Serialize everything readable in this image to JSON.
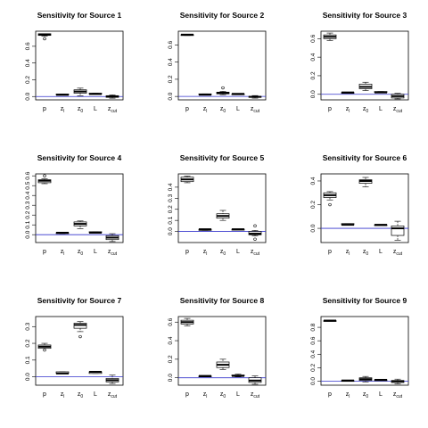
{
  "chart_data": [
    {
      "type": "boxplot",
      "title": "Sensitivity for Source 1",
      "categories": [
        "p",
        "z_l",
        "z_0",
        "L",
        "z_cut"
      ],
      "yticks": [
        0.0,
        0.2,
        0.4,
        0.6
      ],
      "ylim": [
        -0.04,
        0.78
      ],
      "reference_line": 0,
      "boxes": [
        {
          "whisker_low": 0.72,
          "q1": 0.73,
          "median": 0.74,
          "q3": 0.75,
          "whisker_high": 0.75,
          "outliers": [
            0.69
          ]
        },
        {
          "whisker_low": 0.02,
          "q1": 0.02,
          "median": 0.02,
          "q3": 0.03,
          "whisker_high": 0.03,
          "outliers": []
        },
        {
          "whisker_low": 0.01,
          "q1": 0.04,
          "median": 0.06,
          "q3": 0.08,
          "whisker_high": 0.1,
          "outliers": []
        },
        {
          "whisker_low": 0.03,
          "q1": 0.03,
          "median": 0.03,
          "q3": 0.04,
          "whisker_high": 0.04,
          "outliers": []
        },
        {
          "whisker_low": -0.02,
          "q1": -0.01,
          "median": 0.0,
          "q3": 0.01,
          "whisker_high": 0.02,
          "outliers": []
        }
      ]
    },
    {
      "type": "boxplot",
      "title": "Sensitivity for Source 2",
      "categories": [
        "p",
        "z_l",
        "z_0",
        "L",
        "z_cut"
      ],
      "yticks": [
        0.0,
        0.2,
        0.4,
        0.6
      ],
      "ylim": [
        -0.04,
        0.76
      ],
      "reference_line": 0,
      "boxes": [
        {
          "whisker_low": 0.71,
          "q1": 0.71,
          "median": 0.72,
          "q3": 0.72,
          "whisker_high": 0.72,
          "outliers": []
        },
        {
          "whisker_low": 0.02,
          "q1": 0.02,
          "median": 0.02,
          "q3": 0.03,
          "whisker_high": 0.03,
          "outliers": []
        },
        {
          "whisker_low": 0.02,
          "q1": 0.03,
          "median": 0.04,
          "q3": 0.05,
          "whisker_high": 0.06,
          "outliers": [
            0.1
          ]
        },
        {
          "whisker_low": 0.02,
          "q1": 0.02,
          "median": 0.03,
          "q3": 0.03,
          "whisker_high": 0.03,
          "outliers": []
        },
        {
          "whisker_low": -0.02,
          "q1": -0.01,
          "median": -0.005,
          "q3": 0.0,
          "whisker_high": 0.01,
          "outliers": []
        }
      ]
    },
    {
      "type": "boxplot",
      "title": "Sensitivity for Source 3",
      "categories": [
        "p",
        "z_l",
        "z_0",
        "L",
        "z_cut"
      ],
      "yticks": [
        0.0,
        0.2,
        0.4,
        0.6
      ],
      "ylim": [
        -0.06,
        0.68
      ],
      "reference_line": 0,
      "boxes": [
        {
          "whisker_low": 0.58,
          "q1": 0.6,
          "median": 0.62,
          "q3": 0.64,
          "whisker_high": 0.66,
          "outliers": []
        },
        {
          "whisker_low": 0.01,
          "q1": 0.01,
          "median": 0.02,
          "q3": 0.02,
          "whisker_high": 0.02,
          "outliers": []
        },
        {
          "whisker_low": 0.04,
          "q1": 0.06,
          "median": 0.08,
          "q3": 0.11,
          "whisker_high": 0.13,
          "outliers": []
        },
        {
          "whisker_low": 0.02,
          "q1": 0.02,
          "median": 0.02,
          "q3": 0.03,
          "whisker_high": 0.03,
          "outliers": []
        },
        {
          "whisker_low": -0.05,
          "q1": -0.04,
          "median": -0.02,
          "q3": 0.0,
          "whisker_high": 0.01,
          "outliers": []
        }
      ]
    },
    {
      "type": "boxplot",
      "title": "Sensitivity for Source 4",
      "categories": [
        "p",
        "z_l",
        "z_0",
        "L",
        "z_cut"
      ],
      "yticks": [
        0.0,
        0.1,
        0.2,
        0.3,
        0.4,
        0.5,
        0.6
      ],
      "ylim": [
        -0.08,
        0.62
      ],
      "reference_line": 0,
      "boxes": [
        {
          "whisker_low": 0.52,
          "q1": 0.53,
          "median": 0.55,
          "q3": 0.56,
          "whisker_high": 0.57,
          "outliers": [
            0.6
          ]
        },
        {
          "whisker_low": 0.01,
          "q1": 0.02,
          "median": 0.02,
          "q3": 0.02,
          "whisker_high": 0.02,
          "outliers": []
        },
        {
          "whisker_low": 0.06,
          "q1": 0.09,
          "median": 0.11,
          "q3": 0.13,
          "whisker_high": 0.14,
          "outliers": []
        },
        {
          "whisker_low": 0.02,
          "q1": 0.02,
          "median": 0.02,
          "q3": 0.03,
          "whisker_high": 0.03,
          "outliers": []
        },
        {
          "whisker_low": -0.07,
          "q1": -0.05,
          "median": -0.03,
          "q3": -0.01,
          "whisker_high": 0.01,
          "outliers": []
        }
      ]
    },
    {
      "type": "boxplot",
      "title": "Sensitivity for Source 5",
      "categories": [
        "p",
        "z_l",
        "z_0",
        "L",
        "z_cut"
      ],
      "yticks": [
        0.0,
        0.1,
        0.2,
        0.3,
        0.4
      ],
      "ylim": [
        -0.1,
        0.52
      ],
      "reference_line": 0,
      "boxes": [
        {
          "whisker_low": 0.44,
          "q1": 0.45,
          "median": 0.47,
          "q3": 0.49,
          "whisker_high": 0.5,
          "outliers": []
        },
        {
          "whisker_low": 0.01,
          "q1": 0.01,
          "median": 0.02,
          "q3": 0.02,
          "whisker_high": 0.02,
          "outliers": []
        },
        {
          "whisker_low": 0.1,
          "q1": 0.12,
          "median": 0.14,
          "q3": 0.16,
          "whisker_high": 0.19,
          "outliers": []
        },
        {
          "whisker_low": 0.02,
          "q1": 0.02,
          "median": 0.02,
          "q3": 0.02,
          "whisker_high": 0.02,
          "outliers": []
        },
        {
          "whisker_low": -0.04,
          "q1": -0.03,
          "median": -0.02,
          "q3": 0.0,
          "whisker_high": 0.01,
          "outliers": [
            0.05,
            -0.07
          ]
        }
      ]
    },
    {
      "type": "boxplot",
      "title": "Sensitivity for Source 6",
      "categories": [
        "p",
        "z_l",
        "z_0",
        "L",
        "z_cut"
      ],
      "yticks": [
        0.0,
        0.2,
        0.4
      ],
      "ylim": [
        -0.12,
        0.46
      ],
      "reference_line": 0,
      "boxes": [
        {
          "whisker_low": 0.24,
          "q1": 0.26,
          "median": 0.28,
          "q3": 0.3,
          "whisker_high": 0.31,
          "outliers": [
            0.2
          ]
        },
        {
          "whisker_low": 0.03,
          "q1": 0.03,
          "median": 0.03,
          "q3": 0.04,
          "whisker_high": 0.04,
          "outliers": []
        },
        {
          "whisker_low": 0.35,
          "q1": 0.38,
          "median": 0.4,
          "q3": 0.41,
          "whisker_high": 0.43,
          "outliers": []
        },
        {
          "whisker_low": 0.03,
          "q1": 0.03,
          "median": 0.03,
          "q3": 0.03,
          "whisker_high": 0.03,
          "outliers": []
        },
        {
          "whisker_low": -0.1,
          "q1": -0.06,
          "median": 0.0,
          "q3": 0.02,
          "whisker_high": 0.06,
          "outliers": []
        }
      ]
    },
    {
      "type": "boxplot",
      "title": "Sensitivity for Source 7",
      "categories": [
        "p",
        "z_l",
        "z_0",
        "L",
        "z_cut"
      ],
      "yticks": [
        0.0,
        0.1,
        0.2,
        0.3
      ],
      "ylim": [
        -0.05,
        0.36
      ],
      "reference_line": 0,
      "boxes": [
        {
          "whisker_low": 0.17,
          "q1": 0.17,
          "median": 0.18,
          "q3": 0.19,
          "whisker_high": 0.2,
          "outliers": [
            0.16
          ]
        },
        {
          "whisker_low": 0.02,
          "q1": 0.02,
          "median": 0.02,
          "q3": 0.03,
          "whisker_high": 0.03,
          "outliers": []
        },
        {
          "whisker_low": 0.27,
          "q1": 0.29,
          "median": 0.31,
          "q3": 0.32,
          "whisker_high": 0.33,
          "outliers": [
            0.24
          ]
        },
        {
          "whisker_low": 0.02,
          "q1": 0.02,
          "median": 0.03,
          "q3": 0.03,
          "whisker_high": 0.03,
          "outliers": []
        },
        {
          "whisker_low": -0.04,
          "q1": -0.03,
          "median": -0.02,
          "q3": -0.01,
          "whisker_high": 0.01,
          "outliers": []
        }
      ]
    },
    {
      "type": "boxplot",
      "title": "Sensitivity for Source 8",
      "categories": [
        "p",
        "z_l",
        "z_0",
        "L",
        "z_cut"
      ],
      "yticks": [
        0.0,
        0.2,
        0.4,
        0.6
      ],
      "ylim": [
        -0.08,
        0.66
      ],
      "reference_line": 0,
      "boxes": [
        {
          "whisker_low": 0.56,
          "q1": 0.58,
          "median": 0.6,
          "q3": 0.62,
          "whisker_high": 0.64,
          "outliers": []
        },
        {
          "whisker_low": 0.01,
          "q1": 0.01,
          "median": 0.02,
          "q3": 0.02,
          "whisker_high": 0.02,
          "outliers": []
        },
        {
          "whisker_low": 0.09,
          "q1": 0.11,
          "median": 0.14,
          "q3": 0.17,
          "whisker_high": 0.2,
          "outliers": []
        },
        {
          "whisker_low": 0.01,
          "q1": 0.02,
          "median": 0.02,
          "q3": 0.03,
          "whisker_high": 0.04,
          "outliers": []
        },
        {
          "whisker_low": -0.07,
          "q1": -0.05,
          "median": -0.03,
          "q3": 0.0,
          "whisker_high": 0.02,
          "outliers": []
        }
      ]
    },
    {
      "type": "boxplot",
      "title": "Sensitivity for Source 9",
      "categories": [
        "p",
        "z_l",
        "z_0",
        "L",
        "z_cut"
      ],
      "yticks": [
        0.0,
        0.2,
        0.4,
        0.6,
        0.8
      ],
      "ylim": [
        -0.06,
        0.96
      ],
      "reference_line": 0,
      "boxes": [
        {
          "whisker_low": 0.89,
          "q1": 0.89,
          "median": 0.9,
          "q3": 0.9,
          "whisker_high": 0.9,
          "outliers": []
        },
        {
          "whisker_low": 0.0,
          "q1": 0.0,
          "median": 0.01,
          "q3": 0.01,
          "whisker_high": 0.01,
          "outliers": []
        },
        {
          "whisker_low": -0.01,
          "q1": 0.01,
          "median": 0.03,
          "q3": 0.05,
          "whisker_high": 0.07,
          "outliers": []
        },
        {
          "whisker_low": 0.01,
          "q1": 0.01,
          "median": 0.02,
          "q3": 0.02,
          "whisker_high": 0.02,
          "outliers": []
        },
        {
          "whisker_low": -0.04,
          "q1": -0.02,
          "median": 0.0,
          "q3": 0.01,
          "whisker_high": 0.03,
          "outliers": []
        }
      ]
    }
  ],
  "colors": {
    "reference_line": "#3333cc",
    "box_fill": "#ffffff",
    "stroke": "#000000"
  }
}
